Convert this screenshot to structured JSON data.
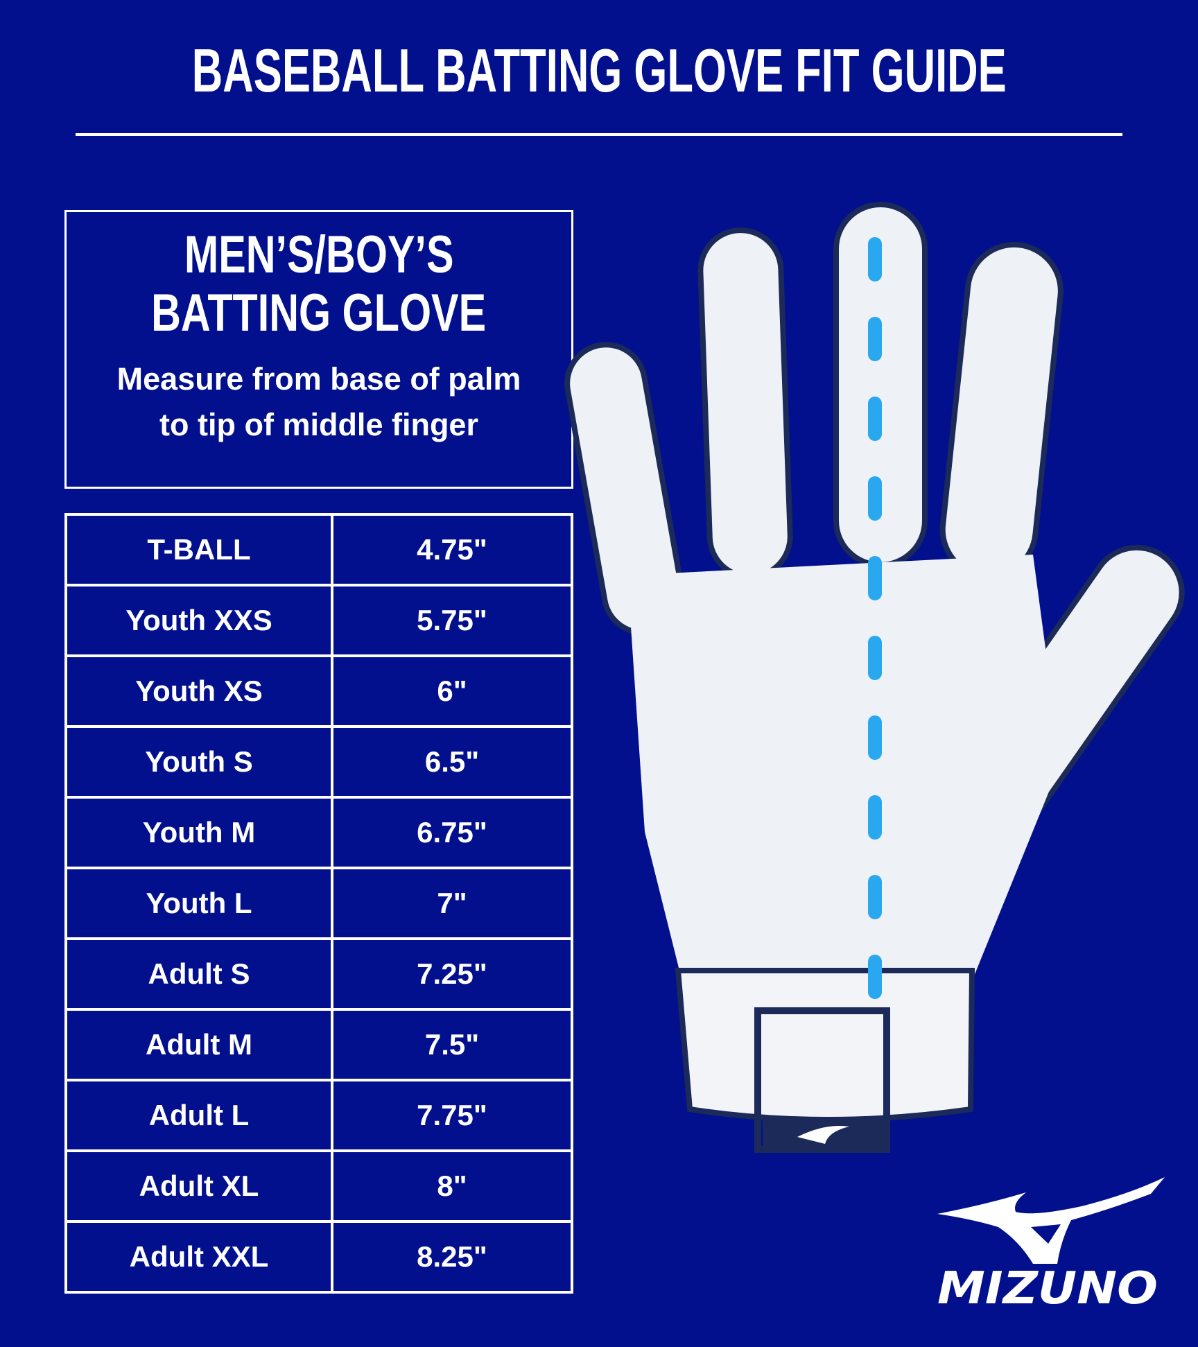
{
  "title": "BASEBALL BATTING GLOVE FIT GUIDE",
  "info_box": {
    "heading_line1": "MEN’S/BOY’S",
    "heading_line2": "BATTING GLOVE",
    "instruction_line1": "Measure from base of palm",
    "instruction_line2": "to tip of middle finger"
  },
  "size_table": {
    "rows": [
      {
        "size": "T-BALL",
        "length": "4.75\""
      },
      {
        "size": "Youth XXS",
        "length": "5.75\""
      },
      {
        "size": "Youth XS",
        "length": "6\""
      },
      {
        "size": "Youth S",
        "length": "6.5\""
      },
      {
        "size": "Youth M",
        "length": "6.75\""
      },
      {
        "size": "Youth L",
        "length": "7\""
      },
      {
        "size": "Adult S",
        "length": "7.25\""
      },
      {
        "size": "Adult M",
        "length": "7.5\""
      },
      {
        "size": "Adult L",
        "length": "7.75\""
      },
      {
        "size": "Adult XL",
        "length": "8\""
      },
      {
        "size": "Adult XXL",
        "length": "8.25\""
      }
    ]
  },
  "logo": {
    "brand": "MIZUNO"
  },
  "colors": {
    "background": "#02108d",
    "text": "#ffffff",
    "measure_line": "#29a8f0",
    "glove": "#eef1f5",
    "glove_trim": "#1b2a58"
  }
}
